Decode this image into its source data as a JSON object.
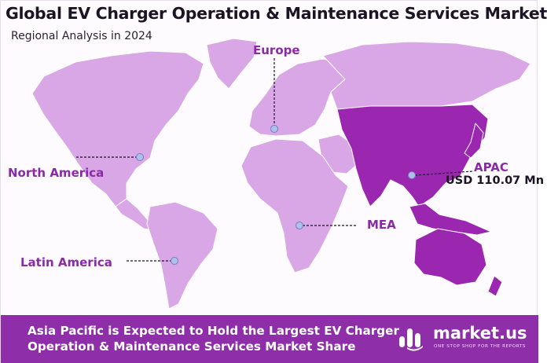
{
  "header": {
    "title": "Global EV Charger Operation & Maintenance Services Market",
    "subtitle": "Regional Analysis in 2024"
  },
  "regions": {
    "europe": "Europe",
    "north_america": "North America",
    "latin_america": "Latin America",
    "mea": "MEA",
    "apac": "APAC",
    "apac_value": "USD 110.07 Mn"
  },
  "banner": {
    "line1": "Asia Pacific is Expected to Hold the Largest EV Charger",
    "line2": "Operation & Maintenance Services Market Share"
  },
  "brand": {
    "name": "market.us",
    "tagline": "ONE STOP SHOP FOR THE REPORTS"
  },
  "colors": {
    "accent": "#8e2ea9",
    "map_light": "#d9a6e6",
    "map_dark": "#9b27b0",
    "marker": "#aebfe9"
  }
}
